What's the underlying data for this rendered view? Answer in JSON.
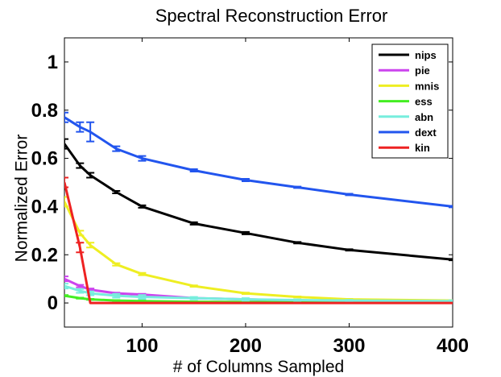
{
  "chart_data": {
    "type": "line",
    "title": "Spectral Reconstruction Error",
    "xlabel": "# of Columns Sampled",
    "ylabel": "Normalized Error",
    "xlim": [
      25,
      400
    ],
    "ylim": [
      -0.1,
      1.1
    ],
    "xticks": [
      100,
      200,
      300,
      400
    ],
    "yticks": [
      0,
      0.2,
      0.4,
      0.6,
      0.8,
      1
    ],
    "xtick_labels": [
      "100",
      "200",
      "300",
      "400"
    ],
    "ytick_labels": [
      "0",
      "0.2",
      "0.4",
      "0.6",
      "0.8",
      "1"
    ],
    "legend_position": "top-right",
    "series": [
      {
        "name": "nips",
        "color": "#000000",
        "x": [
          25,
          40,
          50,
          75,
          100,
          150,
          200,
          250,
          300,
          400
        ],
        "y": [
          0.66,
          0.57,
          0.53,
          0.46,
          0.4,
          0.33,
          0.29,
          0.25,
          0.22,
          0.18
        ],
        "err": [
          0.02,
          0.01,
          0.01,
          0.005,
          0.005,
          0.005,
          0.005,
          0.003,
          0.003,
          0.003
        ]
      },
      {
        "name": "pie",
        "color": "#cc44ee",
        "x": [
          25,
          40,
          50,
          75,
          100,
          150,
          200,
          250,
          300,
          400
        ],
        "y": [
          0.1,
          0.07,
          0.055,
          0.04,
          0.035,
          0.02,
          0.015,
          0.01,
          0.008,
          0.005
        ],
        "err": [
          0.01,
          0.005,
          0.005,
          0.003,
          0.003,
          0.002,
          0.002,
          0.002,
          0.002,
          0.002
        ]
      },
      {
        "name": "mnis",
        "color": "#eeee22",
        "x": [
          25,
          40,
          50,
          75,
          100,
          150,
          200,
          250,
          300,
          400
        ],
        "y": [
          0.42,
          0.29,
          0.24,
          0.16,
          0.12,
          0.07,
          0.04,
          0.025,
          0.015,
          0.01
        ],
        "err": [
          0.02,
          0.01,
          0.01,
          0.005,
          0.005,
          0.003,
          0.003,
          0.002,
          0.002,
          0.002
        ]
      },
      {
        "name": "ess",
        "color": "#44ee22",
        "x": [
          25,
          40,
          50,
          75,
          100,
          150,
          200,
          250,
          300,
          400
        ],
        "y": [
          0.03,
          0.02,
          0.015,
          0.01,
          0.008,
          0.005,
          0.004,
          0.003,
          0.003,
          0.002
        ],
        "err": [
          0.003,
          0.002,
          0.002,
          0.002,
          0.002,
          0.001,
          0.001,
          0.001,
          0.001,
          0.001
        ]
      },
      {
        "name": "abn",
        "color": "#77eedd",
        "x": [
          25,
          40,
          50,
          75,
          100,
          150,
          200,
          250,
          300,
          400
        ],
        "y": [
          0.07,
          0.05,
          0.04,
          0.03,
          0.025,
          0.02,
          0.015,
          0.012,
          0.01,
          0.008
        ],
        "err": [
          0.01,
          0.008,
          0.008,
          0.008,
          0.008,
          0.005,
          0.005,
          0.003,
          0.003,
          0.003
        ]
      },
      {
        "name": "dext",
        "color": "#2255ee",
        "x": [
          25,
          40,
          50,
          75,
          100,
          150,
          200,
          250,
          300,
          400
        ],
        "y": [
          0.77,
          0.73,
          0.71,
          0.64,
          0.6,
          0.55,
          0.51,
          0.48,
          0.45,
          0.4
        ],
        "err": [
          0.02,
          0.02,
          0.04,
          0.01,
          0.01,
          0.005,
          0.005,
          0.003,
          0.003,
          0.003
        ]
      },
      {
        "name": "kin",
        "color": "#ee2222",
        "x": [
          25,
          40,
          50,
          75,
          100,
          150,
          200,
          250,
          300,
          400
        ],
        "y": [
          0.5,
          0.23,
          0.0,
          0.0,
          0.0,
          0.0,
          0.0,
          0.0,
          0.0,
          0.0
        ],
        "err": [
          0.02,
          0.02,
          0.0,
          0.0,
          0.0,
          0.0,
          0.0,
          0.0,
          0.0,
          0.0
        ]
      }
    ]
  }
}
